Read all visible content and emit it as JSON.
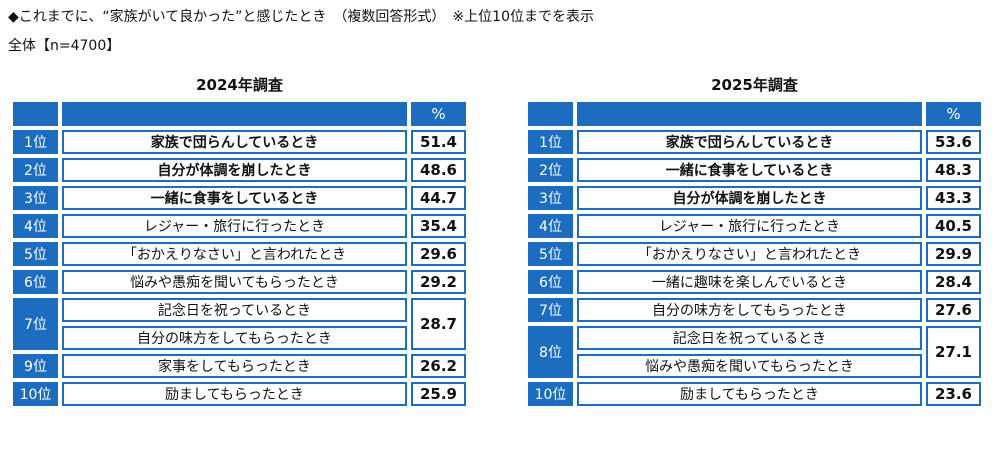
{
  "header": {
    "title": "◆これまでに、“家族がいて良かった”と感じたとき　（複数回答形式）　※上位10位までを表示",
    "subtitle": "全体【n=4700】"
  },
  "tables": [
    {
      "title": "2024年調査",
      "value_header": "%",
      "groups": [
        {
          "rank": "1位",
          "items": [
            "家族で団らんしているとき"
          ],
          "value": 51.4
        },
        {
          "rank": "2位",
          "items": [
            "自分が体調を崩したとき"
          ],
          "value": 48.6
        },
        {
          "rank": "3位",
          "items": [
            "一緒に食事をしているとき"
          ],
          "value": 44.7
        },
        {
          "rank": "4位",
          "items": [
            "レジャー・旅行に行ったとき"
          ],
          "value": 35.4
        },
        {
          "rank": "5位",
          "items": [
            "「おかえりなさい」と言われたとき"
          ],
          "value": 29.6
        },
        {
          "rank": "6位",
          "items": [
            "悩みや愚痴を聞いてもらったとき"
          ],
          "value": 29.2
        },
        {
          "rank": "7位",
          "items": [
            "記念日を祝っているとき",
            "自分の味方をしてもらったとき"
          ],
          "value": 28.7
        },
        {
          "rank": "9位",
          "items": [
            "家事をしてもらったとき"
          ],
          "value": 26.2
        },
        {
          "rank": "10位",
          "items": [
            "励ましてもらったとき"
          ],
          "value": 25.9
        }
      ]
    },
    {
      "title": "2025年調査",
      "value_header": "%",
      "groups": [
        {
          "rank": "1位",
          "items": [
            "家族で団らんしているとき"
          ],
          "value": 53.6
        },
        {
          "rank": "2位",
          "items": [
            "一緒に食事をしているとき"
          ],
          "value": 48.3
        },
        {
          "rank": "3位",
          "items": [
            "自分が体調を崩したとき"
          ],
          "value": 43.3
        },
        {
          "rank": "4位",
          "items": [
            "レジャー・旅行に行ったとき"
          ],
          "value": 40.5
        },
        {
          "rank": "5位",
          "items": [
            "「おかえりなさい」と言われたとき"
          ],
          "value": 29.9
        },
        {
          "rank": "6位",
          "items": [
            "一緒に趣味を楽しんでいるとき"
          ],
          "value": 28.4
        },
        {
          "rank": "7位",
          "items": [
            "自分の味方をしてもらったとき"
          ],
          "value": 27.6
        },
        {
          "rank": "8位",
          "items": [
            "記念日を祝っているとき",
            "悩みや愚痴を聞いてもらったとき"
          ],
          "value": 27.1
        },
        {
          "rank": "10位",
          "items": [
            "励ましてもらったとき"
          ],
          "value": 23.6
        }
      ]
    }
  ]
}
